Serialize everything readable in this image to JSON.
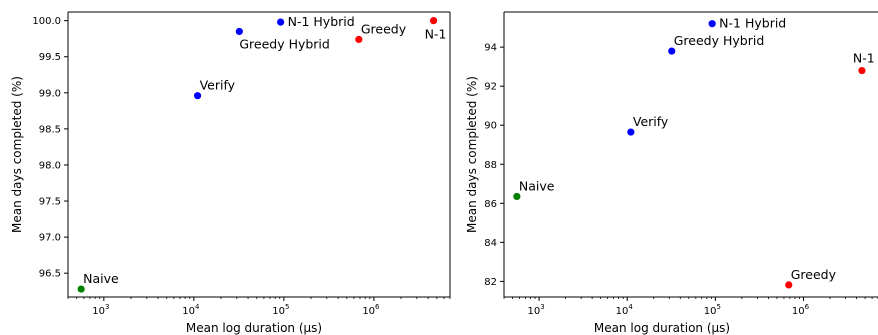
{
  "charts": [
    {
      "type": "scatter",
      "xscale": "log",
      "xlim": [
        400,
        7000000
      ],
      "ylim": [
        96.17,
        100.12
      ],
      "xlabel": "Mean log duration (μs)",
      "ylabel": "Mean days completed (%)",
      "xticks": [
        {
          "base": "10",
          "exp": "3",
          "value": 1000
        },
        {
          "base": "10",
          "exp": "4",
          "value": 10000
        },
        {
          "base": "10",
          "exp": "5",
          "value": 100000
        },
        {
          "base": "10",
          "exp": "6",
          "value": 1000000
        }
      ],
      "yticks": [
        "96.5",
        "97.0",
        "97.5",
        "98.0",
        "98.5",
        "99.0",
        "99.5",
        "100.0"
      ],
      "points": [
        {
          "label": "Naive",
          "x": 560,
          "y": 96.28,
          "color": "#008000",
          "label_pos": "above"
        },
        {
          "label": "Verify",
          "x": 11000,
          "y": 98.96,
          "color": "#0000ff",
          "label_pos": "above"
        },
        {
          "label": "Greedy Hybrid",
          "x": 32000,
          "y": 99.85,
          "color": "#0000ff",
          "label_pos": "below"
        },
        {
          "label": "N-1 Hybrid",
          "x": 92000,
          "y": 99.98,
          "color": "#0000ff",
          "label_pos": "right"
        },
        {
          "label": "Greedy",
          "x": 680000,
          "y": 99.74,
          "color": "#ff0000",
          "label_pos": "above"
        },
        {
          "label": "N-1",
          "x": 4600000,
          "y": 100.0,
          "color": "#ff0000",
          "label_pos": "below-left"
        }
      ]
    },
    {
      "type": "scatter",
      "xscale": "log",
      "xlim": [
        400,
        7000000
      ],
      "ylim": [
        81.2,
        95.8
      ],
      "xlabel": "Mean log duration (μs)",
      "ylabel": "Mean days completed (%)",
      "xticks": [
        {
          "base": "10",
          "exp": "3",
          "value": 1000
        },
        {
          "base": "10",
          "exp": "4",
          "value": 10000
        },
        {
          "base": "10",
          "exp": "5",
          "value": 100000
        },
        {
          "base": "10",
          "exp": "6",
          "value": 1000000
        }
      ],
      "yticks": [
        "82",
        "84",
        "86",
        "88",
        "90",
        "92",
        "94"
      ],
      "points": [
        {
          "label": "Naive",
          "x": 560,
          "y": 86.35,
          "color": "#008000",
          "label_pos": "above"
        },
        {
          "label": "Verify",
          "x": 11000,
          "y": 89.65,
          "color": "#0000ff",
          "label_pos": "above"
        },
        {
          "label": "Greedy Hybrid",
          "x": 32000,
          "y": 93.8,
          "color": "#0000ff",
          "label_pos": "above"
        },
        {
          "label": "N-1 Hybrid",
          "x": 92000,
          "y": 95.2,
          "color": "#0000ff",
          "label_pos": "right"
        },
        {
          "label": "Greedy",
          "x": 680000,
          "y": 81.82,
          "color": "#ff0000",
          "label_pos": "above"
        },
        {
          "label": "N-1",
          "x": 4600000,
          "y": 92.8,
          "color": "#ff0000",
          "label_pos": "above-clip"
        }
      ]
    }
  ]
}
